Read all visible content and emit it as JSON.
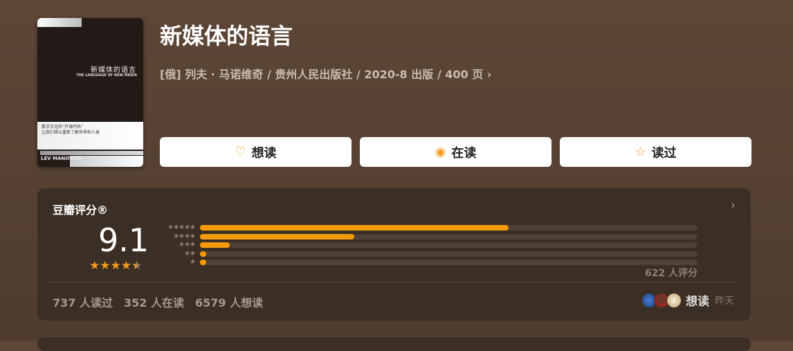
{
  "book": {
    "title": "新媒体的语言",
    "meta": "[俄] 列夫 · 马诺维奇 / 贵州人民出版社 / 2020-8 出版 / 400 页 ›",
    "cover": {
      "title_cn": "新媒体的语言",
      "title_en": "THE LANGUAGE OF NEW MEDIA",
      "tagline": "数字文化的“开源代码”\n让我们得以重新了解世界和人类",
      "author": "LEV MANOVICH"
    }
  },
  "actions": [
    {
      "label": "想读",
      "icon": "heart-plus-icon"
    },
    {
      "label": "在读",
      "icon": "target-circle-icon"
    },
    {
      "label": "读过",
      "icon": "star-outline-icon"
    }
  ],
  "rating": {
    "title": "豆瓣评分®",
    "score": "9.1",
    "stars": 4.5,
    "distribution": [
      {
        "stars": "★★★★★",
        "percent": 62
      },
      {
        "stars": "★★★★",
        "percent": 31
      },
      {
        "stars": "★★★",
        "percent": 6
      },
      {
        "stars": "★★",
        "percent": 1
      },
      {
        "stars": "★",
        "percent": 1
      }
    ],
    "count": "622 人评分",
    "stats": [
      "737 人读过",
      "352 人在读",
      "6579 人想读"
    ],
    "friends_action": "想读",
    "friends_time": "昨天"
  },
  "colors": {
    "accent": "#f59a0d",
    "card": "#3b2f25"
  }
}
